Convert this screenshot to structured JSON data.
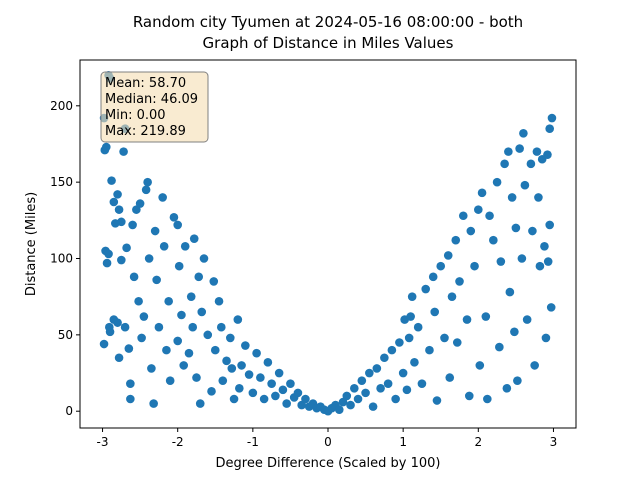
{
  "chart_data": {
    "type": "scatter",
    "title": [
      "Random city Tyumen at 2024-05-16 08:00:00  - both",
      "Graph of Distance in Miles Values"
    ],
    "x_label": "Degree Difference (Scaled by 100)",
    "y_label": "Distance (Miles)",
    "stats": [
      "Mean: 58.70",
      "Median: 46.09",
      "Min: 0.00",
      "Max: 219.89"
    ],
    "color": "#1f77b4",
    "xlim": [
      -3.3,
      3.3
    ],
    "ylim": [
      -11,
      230
    ],
    "xticks": [
      -3,
      -2,
      -1,
      0,
      1,
      2,
      3
    ],
    "yticks": [
      0,
      50,
      100,
      150,
      200
    ],
    "x": [
      -2.98,
      -2.97,
      -2.95,
      -2.92,
      -2.9,
      -2.96,
      -2.94,
      -2.92,
      -2.98,
      -2.91,
      -2.9,
      -2.88,
      -2.85,
      -2.83,
      -2.8,
      -2.78,
      -2.85,
      -2.8,
      -2.78,
      -2.75,
      -2.75,
      -2.72,
      -2.7,
      -2.7,
      -2.68,
      -2.65,
      -2.63,
      -2.63,
      -2.6,
      -2.58,
      -2.55,
      -2.52,
      -2.5,
      -2.48,
      -2.45,
      -2.42,
      -2.4,
      -2.38,
      -2.35,
      -2.32,
      -2.3,
      -2.28,
      -2.25,
      -2.2,
      -2.18,
      -2.15,
      -2.12,
      -2.1,
      -2.05,
      -2.0,
      -2.0,
      -1.98,
      -1.95,
      -1.92,
      -1.9,
      -1.85,
      -1.82,
      -1.8,
      -1.78,
      -1.75,
      -1.72,
      -1.7,
      -1.68,
      -1.65,
      -1.6,
      -1.55,
      -1.52,
      -1.5,
      -1.45,
      -1.42,
      -1.4,
      -1.35,
      -1.3,
      -1.28,
      -1.25,
      -1.2,
      -1.18,
      -1.15,
      -1.1,
      -1.05,
      -1.0,
      -0.95,
      -0.9,
      -0.85,
      -0.8,
      -0.75,
      -0.7,
      -0.65,
      -0.6,
      -0.55,
      -0.5,
      -0.45,
      -0.4,
      -0.35,
      -0.3,
      -0.25,
      -0.2,
      -0.15,
      -0.1,
      -0.05,
      0,
      0.05,
      0.1,
      0.15,
      0.2,
      0.25,
      0.3,
      0.35,
      0.4,
      0.45,
      0.5,
      0.55,
      0.6,
      0.65,
      0.7,
      0.75,
      0.8,
      0.85,
      0.9,
      0.95,
      1.0,
      1.02,
      1.05,
      1.08,
      1.1,
      1.12,
      1.15,
      1.2,
      1.25,
      1.3,
      1.35,
      1.4,
      1.42,
      1.45,
      1.5,
      1.55,
      1.6,
      1.62,
      1.65,
      1.7,
      1.72,
      1.75,
      1.8,
      1.85,
      1.88,
      1.9,
      1.95,
      2.0,
      2.02,
      2.05,
      2.1,
      2.12,
      2.15,
      2.2,
      2.25,
      2.28,
      2.3,
      2.35,
      2.38,
      2.4,
      2.42,
      2.45,
      2.48,
      2.5,
      2.52,
      2.55,
      2.58,
      2.6,
      2.62,
      2.65,
      2.7,
      2.72,
      2.75,
      2.78,
      2.8,
      2.82,
      2.85,
      2.88,
      2.9,
      2.92,
      2.95,
      2.98,
      2.97,
      2.95,
      2.93
    ],
    "series": [
      {
        "name": "Distance",
        "color": "#1f77b4",
        "values": [
          192,
          171,
          173,
          220,
          218,
          105,
          97,
          103,
          44,
          55,
          52,
          151,
          137,
          123,
          142,
          132,
          60,
          58,
          35,
          99,
          124,
          170,
          185,
          55,
          107,
          41,
          18,
          8,
          122,
          88,
          132,
          72,
          136,
          48,
          62,
          145,
          150,
          100,
          28,
          5,
          118,
          86,
          55,
          140,
          108,
          40,
          72,
          20,
          127,
          122,
          46,
          95,
          63,
          30,
          108,
          38,
          75,
          55,
          113,
          22,
          88,
          5,
          65,
          100,
          50,
          13,
          85,
          40,
          72,
          55,
          20,
          33,
          48,
          28,
          8,
          60,
          15,
          30,
          43,
          24,
          12,
          38,
          22,
          8,
          32,
          18,
          10,
          25,
          14,
          5,
          18,
          9,
          12,
          4,
          8,
          3,
          5,
          2,
          3,
          1,
          0,
          2,
          4,
          1,
          6,
          10,
          4,
          15,
          8,
          20,
          12,
          25,
          3,
          28,
          15,
          35,
          18,
          40,
          8,
          45,
          25,
          60,
          14,
          48,
          62,
          75,
          32,
          55,
          18,
          80,
          40,
          88,
          65,
          7,
          95,
          48,
          102,
          22,
          75,
          112,
          45,
          85,
          128,
          60,
          10,
          118,
          95,
          132,
          30,
          143,
          62,
          8,
          128,
          112,
          150,
          42,
          98,
          162,
          15,
          170,
          78,
          140,
          52,
          120,
          20,
          172,
          100,
          182,
          148,
          60,
          162,
          118,
          30,
          170,
          140,
          95,
          165,
          108,
          48,
          168,
          185,
          192,
          68,
          122,
          98
        ]
      }
    ]
  }
}
